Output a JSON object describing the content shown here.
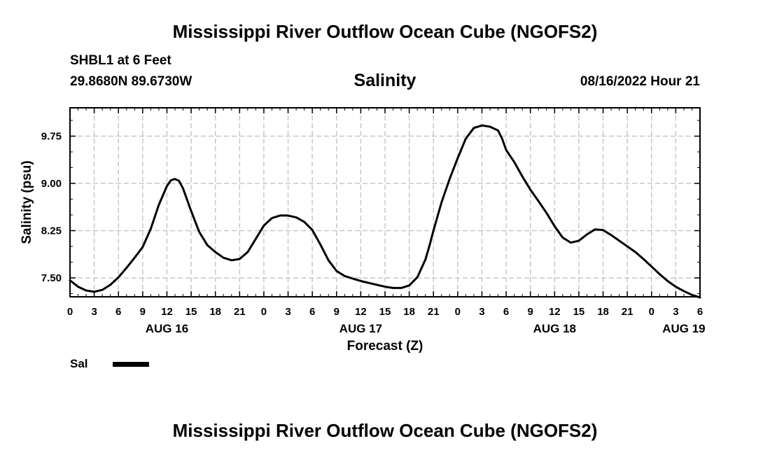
{
  "header": {
    "main_title": "Mississippi River Outflow Ocean Cube (NGOFS2)",
    "station": "SHBL1 at 6 Feet",
    "coords": "29.8680N  89.6730W",
    "chart_title": "Salinity",
    "datetime": "08/16/2022 Hour 21"
  },
  "footer": {
    "title": "Mississippi River Outflow Ocean Cube (NGOFS2)"
  },
  "legend": {
    "label": "Sal",
    "color": "#000000"
  },
  "chart_data": {
    "type": "line",
    "title": "Salinity",
    "xlabel": "Forecast (Z)",
    "ylabel": "Salinity (psu)",
    "x_unit": "hours from 2022-08-16 00Z",
    "xlim": [
      0,
      78
    ],
    "ylim": [
      7.2,
      10.2
    ],
    "grid": true,
    "x_ticks": [
      0,
      3,
      6,
      9,
      12,
      15,
      18,
      21,
      24,
      27,
      30,
      33,
      36,
      39,
      42,
      45,
      48,
      51,
      54,
      57,
      60,
      63,
      66,
      69,
      72,
      75,
      78
    ],
    "x_tick_labels": [
      "0",
      "3",
      "6",
      "9",
      "12",
      "15",
      "18",
      "21",
      "0",
      "3",
      "6",
      "9",
      "12",
      "15",
      "18",
      "21",
      "0",
      "3",
      "6",
      "9",
      "12",
      "15",
      "18",
      "21",
      "0",
      "3",
      "6"
    ],
    "date_labels": [
      {
        "x": 12,
        "label": "AUG 16"
      },
      {
        "x": 36,
        "label": "AUG 17"
      },
      {
        "x": 60,
        "label": "AUG 18"
      },
      {
        "x": 76,
        "label": "AUG 19"
      }
    ],
    "y_ticks": [
      7.5,
      8.25,
      9.0,
      9.75
    ],
    "y_tick_labels": [
      "7.50",
      "8.25",
      "9.00",
      "9.75"
    ],
    "series": [
      {
        "name": "Sal",
        "color": "#000000",
        "x": [
          0,
          1,
          2,
          3,
          4,
          5,
          6,
          7,
          8,
          9,
          10,
          11,
          12,
          12.5,
          13,
          13.5,
          14,
          15,
          16,
          17,
          18,
          19,
          20,
          21,
          22,
          23,
          24,
          25,
          26,
          27,
          28,
          29,
          30,
          31,
          32,
          33,
          34,
          35,
          36,
          37,
          38,
          39,
          40,
          41,
          42,
          43,
          44,
          44.5,
          45,
          46,
          47,
          48,
          49,
          50,
          51,
          52,
          53,
          53.5,
          54,
          55,
          56,
          57,
          58,
          59,
          60,
          61,
          62,
          63,
          64,
          65,
          66,
          67,
          68,
          69,
          70,
          71,
          72,
          73,
          74,
          75,
          76,
          77,
          78
        ],
        "values": [
          7.46,
          7.36,
          7.3,
          7.28,
          7.31,
          7.39,
          7.51,
          7.66,
          7.82,
          7.99,
          8.28,
          8.66,
          8.96,
          9.05,
          9.07,
          9.04,
          8.92,
          8.56,
          8.23,
          8.02,
          7.91,
          7.82,
          7.78,
          7.8,
          7.91,
          8.12,
          8.33,
          8.45,
          8.49,
          8.49,
          8.46,
          8.39,
          8.26,
          8.03,
          7.78,
          7.61,
          7.53,
          7.49,
          7.45,
          7.42,
          7.39,
          7.36,
          7.34,
          7.34,
          7.38,
          7.51,
          7.79,
          8.01,
          8.25,
          8.7,
          9.07,
          9.4,
          9.71,
          9.88,
          9.92,
          9.9,
          9.84,
          9.71,
          9.53,
          9.34,
          9.11,
          8.9,
          8.72,
          8.53,
          8.32,
          8.14,
          8.06,
          8.09,
          8.19,
          8.27,
          8.26,
          8.18,
          8.09,
          8.0,
          7.91,
          7.8,
          7.68,
          7.56,
          7.45,
          7.36,
          7.29,
          7.23,
          7.19
        ]
      }
    ]
  }
}
